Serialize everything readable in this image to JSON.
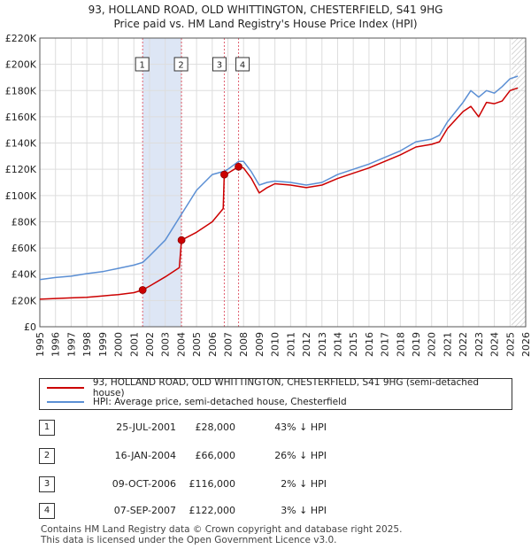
{
  "title": "93, HOLLAND ROAD, OLD WHITTINGTON, CHESTERFIELD, S41 9HG",
  "subtitle": "Price paid vs. HM Land Registry's House Price Index (HPI)",
  "colors": {
    "property": "#cc0000",
    "hpi": "#5b8fd4",
    "shade": "#dde6f5",
    "grid": "#dddddd",
    "marker_line": "#e06070"
  },
  "chart_data": {
    "type": "line",
    "title": "Price paid vs. HM Land Registry's House Price Index (HPI)",
    "xlim": [
      1995,
      2026
    ],
    "ylim": [
      0,
      220000
    ],
    "x_ticks": [
      "1995",
      "1996",
      "1997",
      "1998",
      "1999",
      "2000",
      "2001",
      "2002",
      "2003",
      "2004",
      "2005",
      "2006",
      "2007",
      "2008",
      "2009",
      "2010",
      "2011",
      "2012",
      "2013",
      "2014",
      "2015",
      "2016",
      "2017",
      "2018",
      "2019",
      "2020",
      "2021",
      "2022",
      "2023",
      "2024",
      "2025",
      "2026"
    ],
    "y_ticks": [
      {
        "value": 0,
        "label": "£0"
      },
      {
        "value": 20000,
        "label": "£20K"
      },
      {
        "value": 40000,
        "label": "£40K"
      },
      {
        "value": 60000,
        "label": "£60K"
      },
      {
        "value": 80000,
        "label": "£80K"
      },
      {
        "value": 100000,
        "label": "£100K"
      },
      {
        "value": 120000,
        "label": "£120K"
      },
      {
        "value": 140000,
        "label": "£140K"
      },
      {
        "value": 160000,
        "label": "£160K"
      },
      {
        "value": 180000,
        "label": "£180K"
      },
      {
        "value": 200000,
        "label": "£200K"
      },
      {
        "value": 220000,
        "label": "£220K"
      }
    ],
    "shaded_range": [
      2001.56,
      2004.04
    ],
    "future_hatch_from": 2025.1,
    "series": [
      {
        "name": "93, HOLLAND ROAD, OLD WHITTINGTON, CHESTERFIELD, S41 9HG (semi-detached house)",
        "x": [
          1995.0,
          1996.0,
          1997.0,
          1998.0,
          1999.0,
          2000.0,
          2001.0,
          2001.56,
          2002.0,
          2003.0,
          2003.9,
          2004.04,
          2005.0,
          2006.0,
          2006.7,
          2006.77,
          2007.0,
          2007.68,
          2008.0,
          2008.5,
          2009.0,
          2009.5,
          2010.0,
          2011.0,
          2012.0,
          2013.0,
          2014.0,
          2015.0,
          2016.0,
          2017.0,
          2018.0,
          2019.0,
          2020.0,
          2020.5,
          2021.0,
          2022.0,
          2022.5,
          2023.0,
          2023.5,
          2024.0,
          2024.5,
          2025.0,
          2025.5
        ],
        "y": [
          21000,
          21500,
          22000,
          22500,
          23500,
          24500,
          26000,
          28000,
          31000,
          38000,
          45000,
          66000,
          72000,
          80000,
          90000,
          116000,
          117000,
          122000,
          121000,
          113000,
          102000,
          106000,
          109000,
          108000,
          106000,
          108000,
          113000,
          117000,
          121000,
          126000,
          131000,
          137000,
          139000,
          141000,
          151000,
          164000,
          168000,
          160000,
          171000,
          170000,
          172000,
          180000,
          182000
        ]
      },
      {
        "name": "HPI: Average price, semi-detached house, Chesterfield",
        "x": [
          1995.0,
          1996.0,
          1997.0,
          1998.0,
          1999.0,
          2000.0,
          2001.0,
          2001.56,
          2002.0,
          2003.0,
          2004.0,
          2005.0,
          2006.0,
          2006.77,
          2007.0,
          2007.68,
          2008.0,
          2008.5,
          2009.0,
          2009.5,
          2010.0,
          2011.0,
          2012.0,
          2013.0,
          2014.0,
          2015.0,
          2016.0,
          2017.0,
          2018.0,
          2019.0,
          2020.0,
          2020.5,
          2021.0,
          2022.0,
          2022.5,
          2023.0,
          2023.5,
          2024.0,
          2024.5,
          2025.0,
          2025.5
        ],
        "y": [
          36000,
          37500,
          38500,
          40500,
          42000,
          44500,
          47000,
          49000,
          54000,
          66000,
          85000,
          104000,
          116000,
          118500,
          120000,
          126000,
          126000,
          118000,
          108000,
          110000,
          111000,
          110000,
          108000,
          110000,
          116000,
          120000,
          124000,
          129000,
          134000,
          141000,
          143000,
          146000,
          156000,
          171000,
          180000,
          175000,
          180000,
          178000,
          183000,
          189000,
          191000
        ]
      }
    ],
    "sale_markers": [
      {
        "label": "1",
        "x": 2001.56,
        "y": 28000
      },
      {
        "label": "2",
        "x": 2004.04,
        "y": 66000
      },
      {
        "label": "3",
        "x": 2006.77,
        "y": 116000
      },
      {
        "label": "4",
        "x": 2007.68,
        "y": 122000
      }
    ]
  },
  "legend": {
    "property": "93, HOLLAND ROAD, OLD WHITTINGTON, CHESTERFIELD, S41 9HG (semi-detached house)",
    "hpi": "HPI: Average price, semi-detached house, Chesterfield"
  },
  "sales": [
    {
      "num": "1",
      "date": "25-JUL-2001",
      "price": "£28,000",
      "hpi": "43% ↓ HPI"
    },
    {
      "num": "2",
      "date": "16-JAN-2004",
      "price": "£66,000",
      "hpi": "26% ↓ HPI"
    },
    {
      "num": "3",
      "date": "09-OCT-2006",
      "price": "£116,000",
      "hpi": "2% ↓ HPI"
    },
    {
      "num": "4",
      "date": "07-SEP-2007",
      "price": "£122,000",
      "hpi": "3% ↓ HPI"
    }
  ],
  "footer": {
    "line1": "Contains HM Land Registry data © Crown copyright and database right 2025.",
    "line2": "This data is licensed under the Open Government Licence v3.0."
  }
}
